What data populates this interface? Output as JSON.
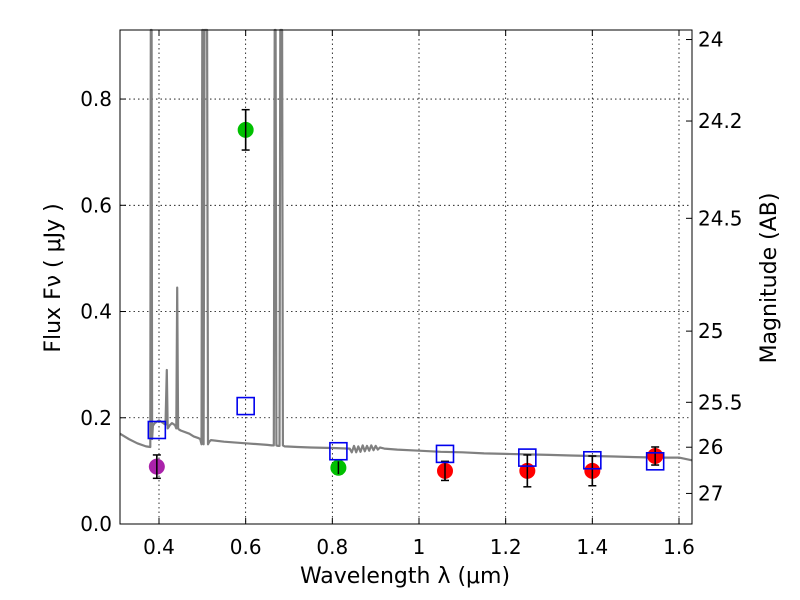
{
  "chart_data": {
    "type": "scatter",
    "xlabel": "Wavelength  λ (μm)",
    "ylabel": "Flux  Fν  ( μJy )",
    "ylabel_right": "Magnitude (AB)",
    "xlim": [
      0.31,
      1.63
    ],
    "ylim": [
      0.0,
      0.93
    ],
    "grid": true,
    "xticks": [
      {
        "value": 0.4,
        "label": "0.4"
      },
      {
        "value": 0.6,
        "label": "0.6"
      },
      {
        "value": 0.8,
        "label": "0.8"
      },
      {
        "value": 1.0,
        "label": "1"
      },
      {
        "value": 1.2,
        "label": "1.2"
      },
      {
        "value": 1.4,
        "label": "1.4"
      },
      {
        "value": 1.6,
        "label": "1.6"
      }
    ],
    "yticks": [
      {
        "value": 0.0,
        "label": "0.0"
      },
      {
        "value": 0.2,
        "label": "0.2"
      },
      {
        "value": 0.4,
        "label": "0.4"
      },
      {
        "value": 0.6,
        "label": "0.6"
      },
      {
        "value": 0.8,
        "label": "0.8"
      }
    ],
    "right_ticks": [
      {
        "mag": 24,
        "label": "24"
      },
      {
        "mag": 24.2,
        "label": "24.2"
      },
      {
        "mag": 24.5,
        "label": "24.5"
      },
      {
        "mag": 25,
        "label": "25"
      },
      {
        "mag": 25.5,
        "label": "25.5"
      },
      {
        "mag": 26,
        "label": "26"
      },
      {
        "mag": 27,
        "label": "27"
      }
    ],
    "observed": [
      {
        "x": 0.395,
        "y": 0.108,
        "err": 0.022,
        "color": "#aa22aa"
      },
      {
        "x": 0.6,
        "y": 0.742,
        "err": 0.038,
        "color": "#00c000"
      },
      {
        "x": 0.814,
        "y": 0.106,
        "err": 0.012,
        "color": "#00c000"
      },
      {
        "x": 1.06,
        "y": 0.1,
        "err": 0.018,
        "color": "#ff0000"
      },
      {
        "x": 1.25,
        "y": 0.1,
        "err": 0.03,
        "color": "#ff0000"
      },
      {
        "x": 1.4,
        "y": 0.1,
        "err": 0.028,
        "color": "#ff0000"
      },
      {
        "x": 1.545,
        "y": 0.128,
        "err": 0.017,
        "color": "#ff0000"
      }
    ],
    "model_points": [
      {
        "x": 0.395,
        "y": 0.177
      },
      {
        "x": 0.6,
        "y": 0.222
      },
      {
        "x": 0.814,
        "y": 0.137
      },
      {
        "x": 1.06,
        "y": 0.132
      },
      {
        "x": 1.25,
        "y": 0.125
      },
      {
        "x": 1.4,
        "y": 0.12
      },
      {
        "x": 1.545,
        "y": 0.118
      }
    ],
    "spectrum": {
      "color": "#808080",
      "x": [
        0.31,
        0.33,
        0.35,
        0.37,
        0.38,
        0.381,
        0.383,
        0.384,
        0.386,
        0.39,
        0.4,
        0.41,
        0.415,
        0.418,
        0.42,
        0.422,
        0.425,
        0.43,
        0.437,
        0.44,
        0.442,
        0.444,
        0.446,
        0.45,
        0.47,
        0.48,
        0.49,
        0.495,
        0.498,
        0.5,
        0.502,
        0.503,
        0.505,
        0.507,
        0.509,
        0.511,
        0.513,
        0.516,
        0.52,
        0.55,
        0.6,
        0.65,
        0.66,
        0.665,
        0.667,
        0.669,
        0.671,
        0.675,
        0.678,
        0.68,
        0.682,
        0.684,
        0.686,
        0.69,
        0.72,
        0.75,
        0.8,
        0.84,
        0.845,
        0.85,
        0.855,
        0.86,
        0.865,
        0.87,
        0.875,
        0.88,
        0.885,
        0.89,
        0.895,
        0.9,
        0.905,
        0.91,
        0.92,
        0.95,
        1.0,
        1.05,
        1.1,
        1.15,
        1.2,
        1.25,
        1.3,
        1.35,
        1.4,
        1.45,
        1.5,
        1.55,
        1.6,
        1.63
      ],
      "y": [
        0.17,
        0.16,
        0.152,
        0.146,
        0.145,
        0.93,
        0.93,
        0.16,
        0.185,
        0.19,
        0.195,
        0.19,
        0.187,
        0.29,
        0.18,
        0.182,
        0.186,
        0.19,
        0.186,
        0.18,
        0.445,
        0.18,
        0.178,
        0.176,
        0.17,
        0.165,
        0.162,
        0.16,
        0.15,
        0.93,
        0.93,
        0.15,
        0.93,
        0.93,
        0.93,
        0.93,
        0.15,
        0.155,
        0.158,
        0.155,
        0.152,
        0.149,
        0.148,
        0.148,
        0.93,
        0.93,
        0.148,
        0.147,
        0.147,
        0.93,
        0.93,
        0.93,
        0.148,
        0.146,
        0.145,
        0.144,
        0.143,
        0.142,
        0.135,
        0.147,
        0.135,
        0.146,
        0.136,
        0.148,
        0.137,
        0.147,
        0.138,
        0.148,
        0.139,
        0.147,
        0.14,
        0.144,
        0.142,
        0.14,
        0.138,
        0.136,
        0.135,
        0.133,
        0.132,
        0.131,
        0.13,
        0.129,
        0.128,
        0.127,
        0.126,
        0.125,
        0.125,
        0.12
      ]
    }
  }
}
